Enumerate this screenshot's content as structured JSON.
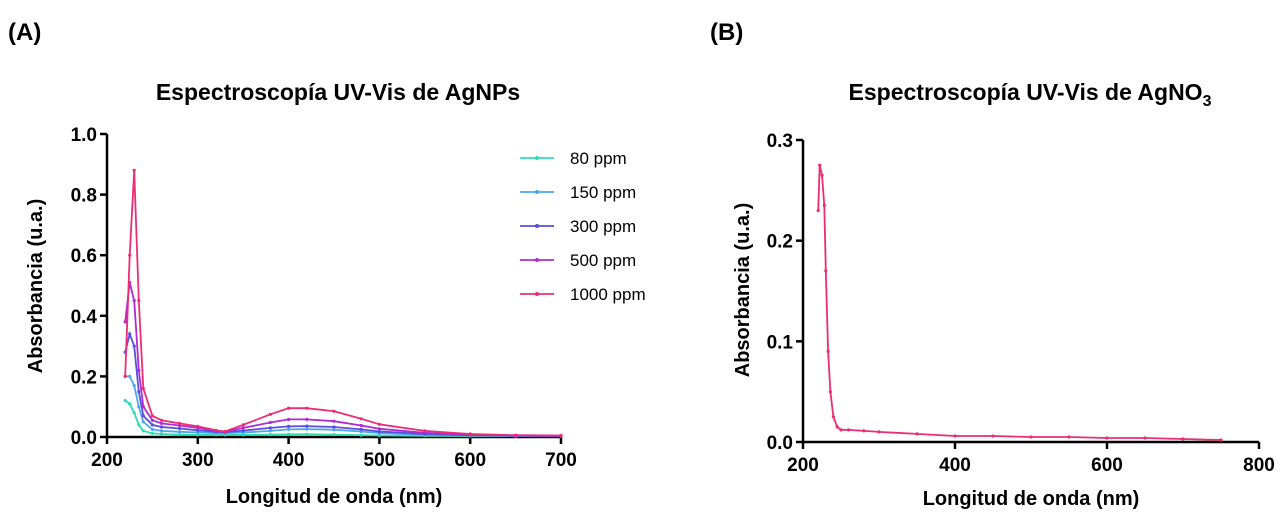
{
  "panels": [
    {
      "label": "(A)"
    },
    {
      "label": "(B)"
    }
  ],
  "chart_data": [
    {
      "type": "line",
      "title": "Espectroscopía UV-Vis de AgNPs",
      "xlabel": "Longitud de onda (nm)",
      "ylabel": "Absorbancia (u.a.)",
      "xlim": [
        200,
        700
      ],
      "ylim": [
        0,
        1.0
      ],
      "xticks": [
        "200",
        "300",
        "400",
        "500",
        "600",
        "700"
      ],
      "yticks": [
        "0.0",
        "0.2",
        "0.4",
        "0.6",
        "0.8",
        "1.0"
      ],
      "grid": false,
      "legend": "top-right",
      "x": [
        220,
        225,
        230,
        235,
        240,
        250,
        260,
        280,
        300,
        320,
        330,
        350,
        380,
        400,
        420,
        450,
        480,
        500,
        550,
        600,
        650,
        700
      ],
      "series": [
        {
          "name": "80 ppm",
          "color": "#2fdcb4",
          "values": [
            0.12,
            0.11,
            0.08,
            0.04,
            0.02,
            0.012,
            0.01,
            0.008,
            0.007,
            0.007,
            0.007,
            0.007,
            0.008,
            0.009,
            0.009,
            0.008,
            0.006,
            0.005,
            0.004,
            0.003,
            0.003,
            0.003
          ]
        },
        {
          "name": "150 ppm",
          "color": "#4ba6ec",
          "values": [
            0.2,
            0.2,
            0.17,
            0.1,
            0.05,
            0.025,
            0.02,
            0.017,
            0.015,
            0.013,
            0.013,
            0.015,
            0.02,
            0.025,
            0.026,
            0.024,
            0.018,
            0.013,
            0.008,
            0.005,
            0.004,
            0.003
          ]
        },
        {
          "name": "300 ppm",
          "color": "#5a4ede",
          "values": [
            0.28,
            0.34,
            0.3,
            0.15,
            0.07,
            0.04,
            0.033,
            0.028,
            0.022,
            0.017,
            0.016,
            0.021,
            0.03,
            0.035,
            0.036,
            0.033,
            0.025,
            0.018,
            0.01,
            0.006,
            0.004,
            0.003
          ]
        },
        {
          "name": "500 ppm",
          "color": "#ae2bd6",
          "values": [
            0.38,
            0.51,
            0.45,
            0.22,
            0.1,
            0.055,
            0.045,
            0.038,
            0.03,
            0.02,
            0.017,
            0.03,
            0.048,
            0.058,
            0.058,
            0.052,
            0.038,
            0.027,
            0.014,
            0.008,
            0.005,
            0.004
          ]
        },
        {
          "name": "1000 ppm",
          "color": "#ec2d74",
          "values": [
            0.2,
            0.6,
            0.88,
            0.45,
            0.16,
            0.07,
            0.055,
            0.045,
            0.035,
            0.022,
            0.018,
            0.04,
            0.075,
            0.095,
            0.095,
            0.085,
            0.06,
            0.042,
            0.02,
            0.01,
            0.006,
            0.005
          ]
        }
      ]
    },
    {
      "type": "line",
      "title": "Espectroscopía UV-Vis de AgNO",
      "title_subscript": "3",
      "xlabel": "Longitud de onda (nm)",
      "ylabel": "Absorbancia (u.a.)",
      "xlim": [
        200,
        800
      ],
      "ylim": [
        0,
        0.3
      ],
      "xticks": [
        "200",
        "400",
        "600",
        "800"
      ],
      "yticks": [
        "0.0",
        "0.1",
        "0.2",
        "0.3"
      ],
      "grid": false,
      "x": [
        220,
        222,
        225,
        228,
        230,
        233,
        236,
        240,
        245,
        250,
        260,
        280,
        300,
        350,
        400,
        450,
        500,
        550,
        600,
        650,
        700,
        750
      ],
      "series": [
        {
          "name": "",
          "color": "#ec2d74",
          "values": [
            0.23,
            0.275,
            0.265,
            0.235,
            0.17,
            0.09,
            0.05,
            0.025,
            0.015,
            0.012,
            0.012,
            0.011,
            0.01,
            0.008,
            0.006,
            0.006,
            0.005,
            0.005,
            0.004,
            0.004,
            0.003,
            0.002
          ]
        }
      ]
    }
  ]
}
